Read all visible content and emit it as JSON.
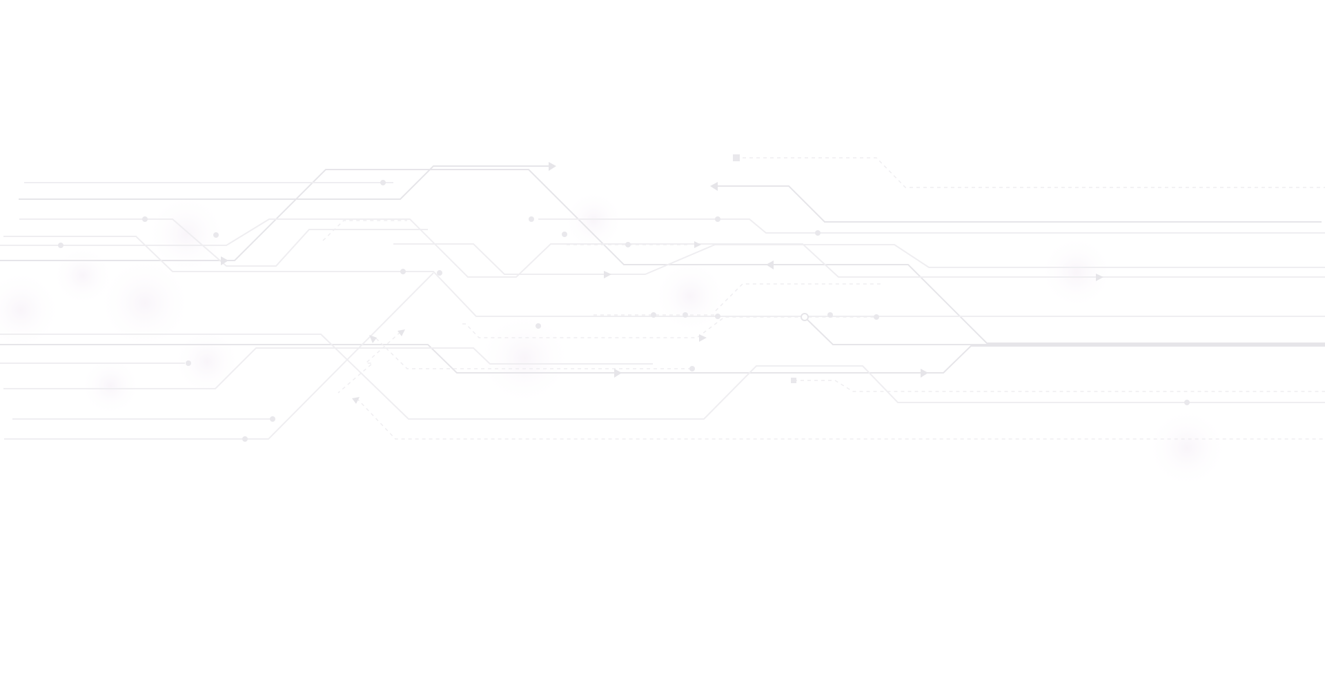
{
  "background": {
    "type": "circuit-board-pattern",
    "colors": {
      "page": "#ffffff",
      "trace_primary": "#e6e5e9",
      "trace_secondary": "#efeef1",
      "trace_dashed": "#f0eff2",
      "glow": "#fbf8fc"
    }
  }
}
